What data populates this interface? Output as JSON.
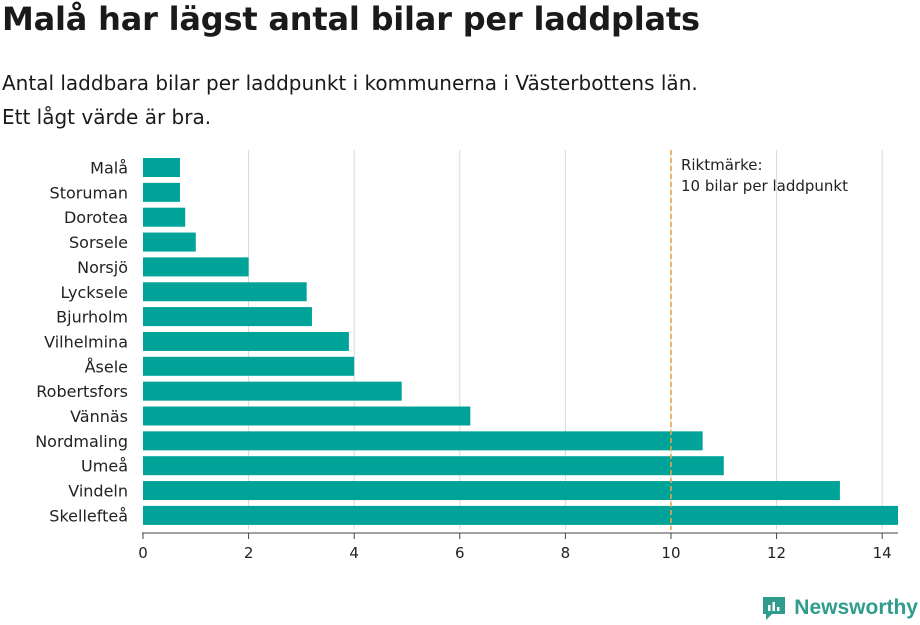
{
  "title": "Malå har lägst antal bilar per laddplats",
  "subtitle": {
    "line1": "Antal laddbara bilar per laddpunkt i kommunerna i Västerbottens län.",
    "line2": "Ett lågt värde är bra."
  },
  "brand": "Newsworthy",
  "colors": {
    "bar": "#00a398",
    "reference_line": "#e0a84a",
    "grid": "#d9d9d9",
    "brand": "#2f9c8c"
  },
  "chart_data": {
    "type": "bar",
    "orientation": "horizontal",
    "categories": [
      "Malå",
      "Storuman",
      "Dorotea",
      "Sorsele",
      "Norsjö",
      "Lycksele",
      "Bjurholm",
      "Vilhelmina",
      "Åsele",
      "Robertsfors",
      "Vännäs",
      "Nordmaling",
      "Umeå",
      "Vindeln",
      "Skellefteå"
    ],
    "values": [
      0.7,
      0.7,
      0.8,
      1.0,
      2.0,
      3.1,
      3.2,
      3.9,
      4.0,
      4.9,
      6.2,
      10.6,
      11.0,
      13.2,
      14.3
    ],
    "xlim": [
      0,
      14.3
    ],
    "xticks": [
      0,
      2,
      4,
      6,
      8,
      10,
      12,
      14
    ],
    "grid": true,
    "reference_line": {
      "value": 10,
      "label_line1": "Riktmärke:",
      "label_line2": "10 bilar per laddpunkt"
    }
  }
}
